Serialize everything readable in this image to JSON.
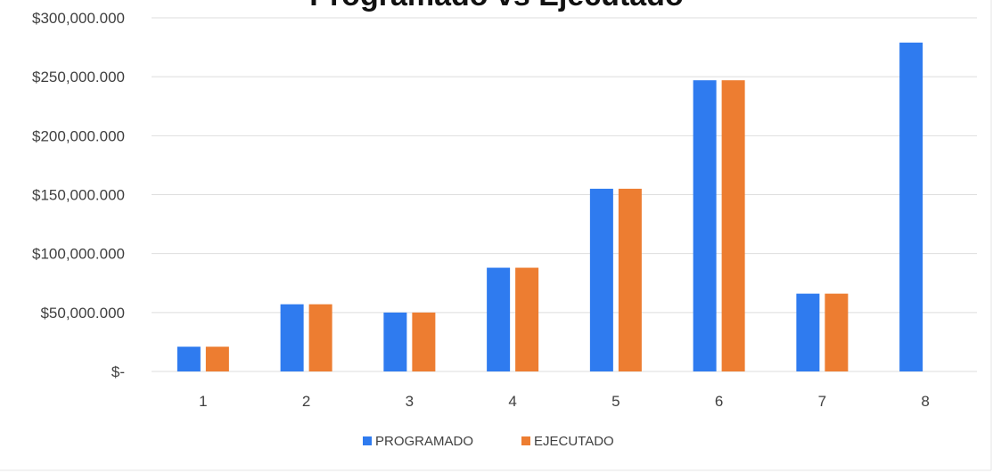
{
  "chart_data": {
    "type": "bar",
    "title": "Programado vs Ejecutado",
    "xlabel": "",
    "ylabel": "",
    "categories": [
      "1",
      "2",
      "3",
      "4",
      "5",
      "6",
      "7",
      "8"
    ],
    "series": [
      {
        "name": "PROGRAMADO",
        "color": "#2F7BEF",
        "values": [
          21000000,
          57000000,
          50000000,
          88000000,
          155000000,
          247000000,
          66000000,
          279000000
        ]
      },
      {
        "name": "EJECUTADO",
        "color": "#ED7D31",
        "values": [
          21000000,
          57000000,
          50000000,
          88000000,
          155000000,
          247000000,
          66000000,
          null
        ]
      }
    ],
    "ylim": [
      0,
      300000000
    ],
    "yticks": [
      {
        "value": 0,
        "label": "$-"
      },
      {
        "value": 50000000,
        "label": "$50,000.000"
      },
      {
        "value": 100000000,
        "label": "$100,000.000"
      },
      {
        "value": 150000000,
        "label": "$150,000.000"
      },
      {
        "value": 200000000,
        "label": "$200,000.000"
      },
      {
        "value": 250000000,
        "label": "$250,000.000"
      },
      {
        "value": 300000000,
        "label": "$300,000.000"
      }
    ],
    "grid": true,
    "legend_position": "bottom"
  }
}
